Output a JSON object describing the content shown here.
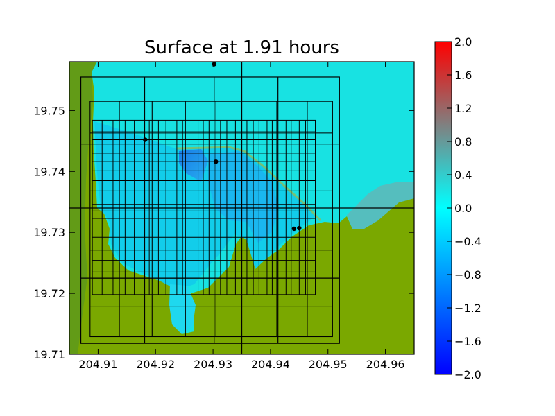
{
  "chart_data": {
    "type": "heatmap",
    "title": "Surface at 1.91 hours",
    "xlabel": "",
    "ylabel": "",
    "xlim": [
      204.905,
      204.965
    ],
    "ylim": [
      19.71,
      19.758
    ],
    "x_ticks": [
      "204.91",
      "204.92",
      "204.93",
      "204.94",
      "204.95",
      "204.96"
    ],
    "x_tick_values": [
      204.91,
      204.92,
      204.93,
      204.94,
      204.95,
      204.96
    ],
    "y_ticks": [
      "19.71",
      "19.72",
      "19.73",
      "19.74",
      "19.75"
    ],
    "y_tick_values": [
      19.71,
      19.72,
      19.73,
      19.74,
      19.75
    ],
    "colorbar": {
      "range": [
        -2.0,
        2.0
      ],
      "ticks": [
        "−2.0",
        "−1.6",
        "−1.2",
        "−0.8",
        "−0.4",
        "0.0",
        "0.4",
        "0.8",
        "1.2",
        "1.6",
        "2.0"
      ],
      "tick_values": [
        -2.0,
        -1.6,
        -1.2,
        -0.8,
        -0.4,
        0.0,
        0.4,
        0.8,
        1.2,
        1.6,
        2.0
      ],
      "colors": [
        "#0000ff",
        "#00ffff",
        "#808080",
        "#ff0000"
      ]
    },
    "land_color": "#7aa800",
    "ocean_color": "#18e2e2",
    "gauges": [
      {
        "x": 204.9302,
        "y": 19.7576
      },
      {
        "x": 204.9182,
        "y": 19.7452
      },
      {
        "x": 204.9305,
        "y": 19.7416
      },
      {
        "x": 204.9441,
        "y": 19.7306
      },
      {
        "x": 204.945,
        "y": 19.7307
      }
    ],
    "grid_lines": {
      "full_vertical": [
        204.935
      ],
      "full_horizontal": [
        19.734
      ],
      "level2_box": {
        "x": [
          204.907,
          204.952
        ],
        "y": [
          19.7118,
          19.7555
        ]
      },
      "level2_vertical": [
        204.9181,
        204.9302,
        204.9413
      ],
      "level2_horizontal": [
        19.7225,
        19.7445
      ],
      "level3_box": {
        "x": [
          204.9086,
          204.9508
        ],
        "y": [
          19.7129,
          19.7515
        ]
      },
      "level3_vertical": [
        204.9137,
        204.9194,
        204.9252,
        204.9305,
        204.9411,
        204.9464
      ],
      "level3_horizontal": [
        19.7179,
        19.7271,
        19.7368,
        19.7463
      ],
      "level4_box": {
        "x": [
          204.909,
          204.9478
        ],
        "y": [
          19.7198,
          19.7484
        ]
      },
      "level4_vertical": [
        204.9107,
        204.9126,
        204.9147,
        204.9163,
        204.9189,
        204.9205,
        204.9218,
        204.9237,
        204.9247,
        204.9274,
        204.9283,
        204.9293,
        204.9313,
        204.9324,
        204.9339,
        204.9359,
        204.937,
        204.938,
        204.9394,
        204.9403,
        204.9427,
        204.9436,
        204.945,
        204.9461
      ],
      "level4_horizontal": [
        19.7225,
        19.7235,
        19.7254,
        19.7292,
        19.7323,
        19.7335,
        19.7346,
        19.7385,
        19.7401,
        19.7416,
        19.743,
        19.7452,
        19.7465
      ]
    }
  }
}
